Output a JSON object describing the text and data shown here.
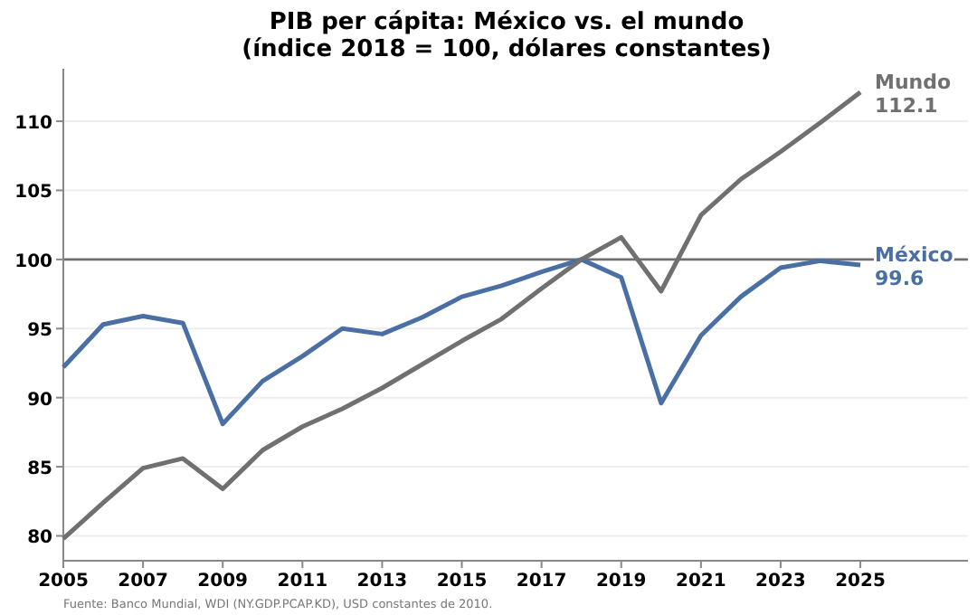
{
  "chart_data": {
    "type": "line",
    "title": "PIB per cápita: México vs. el mundo",
    "subtitle": "(índice 2018 = 100, dólares constantes)",
    "x": [
      2005,
      2006,
      2007,
      2008,
      2009,
      2010,
      2011,
      2012,
      2013,
      2014,
      2015,
      2016,
      2017,
      2018,
      2019,
      2020,
      2021,
      2022,
      2023,
      2024,
      2025
    ],
    "series": [
      {
        "name": "México",
        "color": "#4a6fa5",
        "values": [
          92.2,
          95.3,
          95.9,
          95.4,
          88.1,
          91.2,
          93.0,
          95.0,
          94.6,
          95.8,
          97.3,
          98.1,
          99.1,
          100,
          98.7,
          89.6,
          94.5,
          97.3,
          99.4,
          99.9,
          99.6
        ],
        "value_labels": [
          null,
          null,
          null,
          null,
          null,
          null,
          null,
          null,
          null,
          null,
          null,
          null,
          null,
          null,
          null,
          null,
          null,
          null,
          null,
          null,
          "99.6"
        ]
      },
      {
        "name": "Mundo",
        "color": "#707070",
        "values": [
          79.8,
          82.4,
          84.9,
          85.6,
          83.4,
          86.2,
          87.9,
          89.2,
          90.7,
          92.4,
          94.1,
          95.7,
          97.9,
          100,
          101.6,
          97.7,
          103.2,
          105.8,
          107.8,
          109.9,
          112.1
        ],
        "value_labels": [
          null,
          null,
          null,
          null,
          null,
          null,
          null,
          null,
          null,
          null,
          null,
          null,
          null,
          null,
          null,
          null,
          null,
          null,
          null,
          null,
          "112.1"
        ]
      }
    ],
    "xlim": [
      2005,
      2027.7
    ],
    "xticks": [
      2005,
      2007,
      2009,
      2011,
      2013,
      2015,
      2017,
      2019,
      2021,
      2023,
      2025
    ],
    "ylim": [
      78.2,
      113.8
    ],
    "yticks": [
      80,
      85,
      90,
      95,
      100,
      105,
      110
    ],
    "grid": "y",
    "marker": "none",
    "line_style": "solid",
    "ref_lines": [
      {
        "axis": "y",
        "value": 100,
        "color": "#707070"
      }
    ],
    "annotations": [
      "Fuente: Banco Mundial, WDI (NY.GDP.PCAP.KD), USD constantes de 2010."
    ]
  }
}
